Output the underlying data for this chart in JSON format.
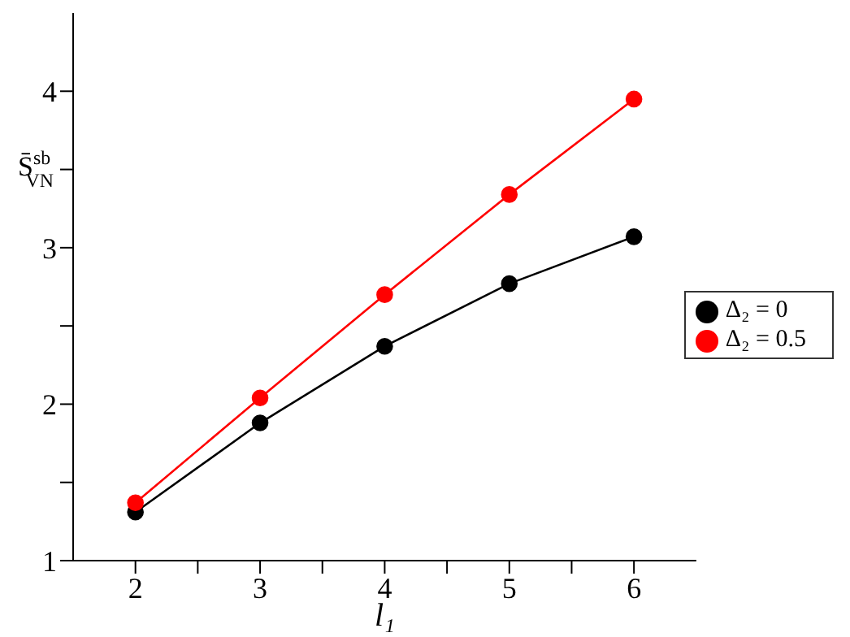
{
  "chart_data": {
    "type": "line",
    "xlabel": "l₁",
    "ylabel": "S̄$^{sb}$$_{VN}$",
    "x": [
      2,
      3,
      4,
      5,
      6
    ],
    "series": [
      {
        "name": "Δ₂ = 0",
        "color": "#000000",
        "values": [
          1.31,
          1.88,
          2.37,
          2.77,
          3.07
        ]
      },
      {
        "name": "Δ₂ = 0.5",
        "color": "#ff0000",
        "values": [
          1.37,
          2.04,
          2.7,
          3.34,
          3.95
        ]
      }
    ],
    "xlim": [
      1.5,
      6.5
    ],
    "xticks": [
      2,
      {
        "value": 2.5,
        "label": null
      },
      3,
      {
        "value": 3.5,
        "label": null
      },
      4,
      {
        "value": 4.5,
        "label": null
      },
      5,
      {
        "value": 5.5,
        "label": null
      },
      6
    ],
    "ylim": [
      1,
      4.5
    ],
    "yticks": [
      1,
      {
        "value": 1.5,
        "label": null
      },
      2,
      {
        "value": 2.5,
        "label": null
      },
      3,
      {
        "value": 3.5,
        "label": null
      },
      4
    ],
    "marker": "circle",
    "line_style": "solid",
    "grid": false,
    "legend": "right"
  }
}
